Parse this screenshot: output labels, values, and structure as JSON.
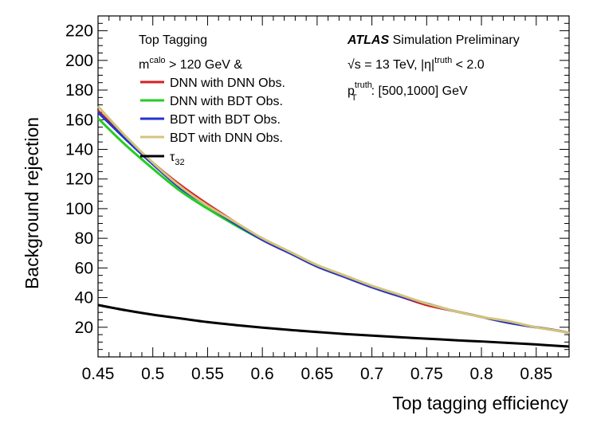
{
  "chart_data": {
    "type": "line",
    "xlabel": "Top tagging efficiency",
    "ylabel": "Background rejection",
    "xlim": [
      0.45,
      0.88
    ],
    "ylim": [
      0,
      230
    ],
    "xticks": [
      0.45,
      0.5,
      0.55,
      0.6,
      0.65,
      0.7,
      0.75,
      0.8,
      0.85
    ],
    "xtick_labels": [
      "0.45",
      "0.5",
      "0.55",
      "0.6",
      "0.65",
      "0.7",
      "0.75",
      "0.8",
      "0.85"
    ],
    "yticks": [
      20,
      40,
      60,
      80,
      100,
      120,
      140,
      160,
      180,
      200,
      220
    ],
    "ytick_labels": [
      "20",
      "40",
      "60",
      "80",
      "100",
      "120",
      "140",
      "160",
      "180",
      "200",
      "220"
    ],
    "grid": false,
    "legend_position": "top-left",
    "legend": {
      "header": "Top Tagging",
      "cut_prefix": "m",
      "cut_sup": "calo",
      "cut_suffix": " > 120 GeV &"
    },
    "annotations": {
      "atlas": "ATLAS",
      "atlas_suffix": " Simulation Preliminary",
      "energy_line": "√s = 13 TeV, |η|",
      "energy_sup": "truth",
      "energy_suffix": " < 2.0",
      "pt_prefix": "p",
      "pt_sub": "T",
      "pt_sup": "truth",
      "pt_suffix": ": [500,1000] GeV"
    },
    "x": [
      0.45,
      0.475,
      0.5,
      0.525,
      0.55,
      0.575,
      0.6,
      0.625,
      0.65,
      0.675,
      0.7,
      0.725,
      0.75,
      0.775,
      0.8,
      0.825,
      0.85,
      0.875,
      0.88
    ],
    "series": [
      {
        "name": "DNN with DNN Obs.",
        "color": "#d62020",
        "values": [
          166,
          148,
          131,
          116,
          103,
          91,
          79,
          70,
          61,
          54,
          47,
          41,
          35,
          31,
          27,
          23,
          20,
          17,
          16
        ]
      },
      {
        "name": "DNN with BDT Obs.",
        "color": "#22cc22",
        "values": [
          161,
          143,
          127,
          112,
          100,
          89,
          79,
          70,
          61,
          54,
          47,
          41,
          36,
          31,
          27,
          23,
          20,
          17,
          16
        ]
      },
      {
        "name": "BDT with BDT Obs.",
        "color": "#2233cc",
        "values": [
          165,
          147,
          130,
          114,
          102,
          90,
          79,
          70,
          61,
          54,
          47,
          41,
          36,
          31,
          27,
          23,
          20,
          17,
          16
        ]
      },
      {
        "name": "BDT with DNN Obs.",
        "color": "#d4c47a",
        "values": [
          169,
          149,
          131,
          115,
          102,
          91,
          80,
          71,
          62,
          55,
          48,
          42,
          36,
          31,
          27,
          24,
          20,
          17,
          16
        ]
      },
      {
        "name": "τ32",
        "label_main": "τ",
        "label_sub": "32",
        "color": "#000000",
        "values": [
          35,
          31.5,
          28.5,
          26,
          23.5,
          21.5,
          19.8,
          18.2,
          16.8,
          15.5,
          14.4,
          13.3,
          12.3,
          11.3,
          10.4,
          9.4,
          8.4,
          7.2,
          7
        ]
      }
    ]
  }
}
